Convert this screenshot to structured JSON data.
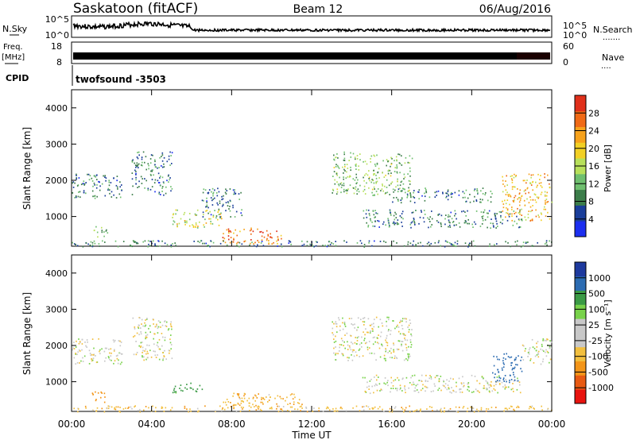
{
  "header": {
    "site": "Saskatoon (fitACF)",
    "beam": "Beam 12",
    "date": "06/Aug/2016"
  },
  "top_panels": {
    "nsky_label": "N.Sky",
    "nsearch_label": "N.Search",
    "nsearch_dots": ".......",
    "nsky_ticks": [
      "10^5",
      "10^0"
    ],
    "nsearch_ticks": [
      "10^5",
      "10^0"
    ],
    "freq_label_1": "Freq.",
    "freq_label_2": "[MHz]",
    "freq_ticks": [
      "18",
      "8"
    ],
    "nave_label": "Nave",
    "nave_dots": "....",
    "nave_ticks": [
      "60",
      "0"
    ],
    "cpid_label": "CPID",
    "cpid_value": "twofsound -3503"
  },
  "x_axis": {
    "label": "Time UT",
    "ticks": [
      "00:00",
      "04:00",
      "08:00",
      "12:00",
      "16:00",
      "20:00",
      "00:00"
    ]
  },
  "colors": {
    "power_scale": [
      "#1c2ff0",
      "#1a3e9a",
      "#3c7d4a",
      "#6fbf6f",
      "#b8e05a",
      "#f2d024",
      "#f7a21b",
      "#f06a16",
      "#e0301b"
    ],
    "velocity_scale": [
      "#e8140f",
      "#e85a12",
      "#f39518",
      "#f2bf3e",
      "#c8c8c8",
      "#c8c8c8",
      "#78d24a",
      "#3a9a45",
      "#2c6cb2",
      "#1e3a9e"
    ]
  },
  "chart_data": [
    {
      "type": "heatmap",
      "title": "",
      "ylabel": "Slant Range [km]",
      "xlabel": "",
      "x_range_hours": [
        0,
        24
      ],
      "ylim": [
        180,
        4500
      ],
      "yticks": [
        1000,
        2000,
        3000,
        4000
      ],
      "colorbar": {
        "label": "Power [dB]",
        "ticks": [
          "4",
          "8",
          "12",
          "16",
          "20",
          "24",
          "28"
        ],
        "range": [
          0,
          30
        ]
      },
      "echo_regions": [
        {
          "t_start": 0.0,
          "t_end": 2.5,
          "range_low": 1500,
          "range_high": 2200,
          "value_dB": 8
        },
        {
          "t_start": 1.0,
          "t_end": 1.8,
          "range_low": 450,
          "range_high": 750,
          "value_dB": 12
        },
        {
          "t_start": 3.0,
          "t_end": 5.0,
          "range_low": 1600,
          "range_high": 2800,
          "value_dB": 8
        },
        {
          "t_start": 5.0,
          "t_end": 7.5,
          "range_low": 700,
          "range_high": 1200,
          "value_dB": 16
        },
        {
          "t_start": 7.5,
          "t_end": 10.5,
          "range_low": 250,
          "range_high": 700,
          "value_dB": 24
        },
        {
          "t_start": 6.5,
          "t_end": 8.5,
          "range_low": 1000,
          "range_high": 1800,
          "value_dB": 8
        },
        {
          "t_start": 0.0,
          "t_end": 24.0,
          "range_low": 180,
          "range_high": 350,
          "value_dB": 8
        },
        {
          "t_start": 13.0,
          "t_end": 17.0,
          "range_low": 1600,
          "range_high": 2800,
          "value_dB": 12
        },
        {
          "t_start": 14.5,
          "t_end": 22.5,
          "range_low": 700,
          "range_high": 1200,
          "value_dB": 8
        },
        {
          "t_start": 16.0,
          "t_end": 21.0,
          "range_low": 1400,
          "range_high": 1800,
          "value_dB": 8
        },
        {
          "t_start": 21.5,
          "t_end": 24.0,
          "range_low": 900,
          "range_high": 2200,
          "value_dB": 20
        }
      ]
    },
    {
      "type": "heatmap",
      "title": "",
      "ylabel": "Slant Range [km]",
      "xlabel": "Time UT",
      "x_range_hours": [
        0,
        24
      ],
      "ylim": [
        180,
        4500
      ],
      "yticks": [
        1000,
        2000,
        3000,
        4000
      ],
      "colorbar": {
        "label": "Velocity [m s⁻¹]",
        "ticks": [
          "1000",
          "500",
          "100",
          "25",
          "-25",
          "-100",
          "-500",
          "-1000"
        ]
      },
      "echo_regions": [
        {
          "t_start": 0.0,
          "t_end": 2.5,
          "range_low": 1500,
          "range_high": 2200,
          "value_ms": 0
        },
        {
          "t_start": 1.0,
          "t_end": 1.8,
          "range_low": 450,
          "range_high": 750,
          "value_ms": -200
        },
        {
          "t_start": 3.0,
          "t_end": 5.0,
          "range_low": 1600,
          "range_high": 2800,
          "value_ms": 0
        },
        {
          "t_start": 5.0,
          "t_end": 6.5,
          "range_low": 700,
          "range_high": 1000,
          "value_ms": 150
        },
        {
          "t_start": 7.5,
          "t_end": 11.5,
          "range_low": 250,
          "range_high": 700,
          "value_ms": -80
        },
        {
          "t_start": 0.0,
          "t_end": 24.0,
          "range_low": 180,
          "range_high": 350,
          "value_ms": -60
        },
        {
          "t_start": 13.0,
          "t_end": 17.0,
          "range_low": 1600,
          "range_high": 2800,
          "value_ms": 0
        },
        {
          "t_start": 14.5,
          "t_end": 22.5,
          "range_low": 700,
          "range_high": 1200,
          "value_ms": 0
        },
        {
          "t_start": 21.0,
          "t_end": 22.5,
          "range_low": 1000,
          "range_high": 1800,
          "value_ms": 600
        },
        {
          "t_start": 22.5,
          "t_end": 24.0,
          "range_low": 1500,
          "range_high": 2200,
          "value_ms": 0
        }
      ]
    }
  ]
}
